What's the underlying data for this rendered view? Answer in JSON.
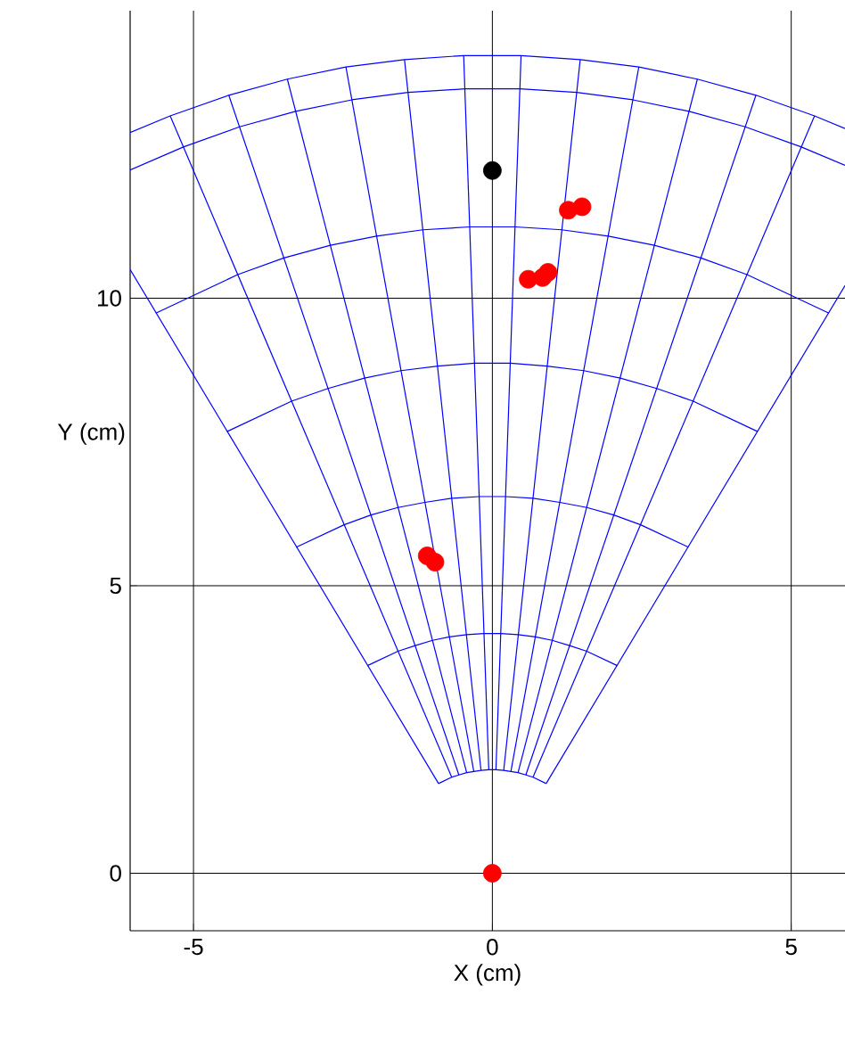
{
  "chart_data": {
    "type": "scatter",
    "xlabel": "X (cm)",
    "ylabel": "Y (cm)",
    "xlim": [
      -6.06,
      5.9
    ],
    "ylim": [
      -1,
      15
    ],
    "xticks": [
      -5,
      0,
      5
    ],
    "yticks": [
      0,
      5,
      10
    ],
    "grid": true,
    "series": [
      {
        "type": "line",
        "color": "#0000ff",
        "x": [
          -0.9,
          -6.06
        ],
        "values": [
          1.56,
          10.5
        ]
      },
      {
        "type": "line",
        "color": "#0000ff",
        "x": [
          -0.68,
          -5.39
        ],
        "values": [
          1.67,
          13.17
        ]
      },
      {
        "type": "line",
        "color": "#0000ff",
        "x": [
          -0.56,
          -4.41
        ],
        "values": [
          1.71,
          13.53
        ]
      },
      {
        "type": "line",
        "color": "#0000ff",
        "x": [
          -0.43,
          -3.43
        ],
        "values": [
          1.75,
          13.81
        ]
      },
      {
        "type": "line",
        "color": "#0000ff",
        "x": [
          -0.31,
          -2.45
        ],
        "values": [
          1.77,
          14.02
        ]
      },
      {
        "type": "line",
        "color": "#0000ff",
        "x": [
          -0.19,
          -1.47
        ],
        "values": [
          1.79,
          14.15
        ]
      },
      {
        "type": "line",
        "color": "#0000ff",
        "x": [
          -0.06,
          -0.48
        ],
        "values": [
          1.8,
          14.22
        ]
      },
      {
        "type": "line",
        "color": "#0000ff",
        "x": [
          0.06,
          0.48
        ],
        "values": [
          1.8,
          14.22
        ]
      },
      {
        "type": "line",
        "color": "#0000ff",
        "x": [
          0.19,
          1.47
        ],
        "values": [
          1.79,
          14.15
        ]
      },
      {
        "type": "line",
        "color": "#0000ff",
        "x": [
          0.31,
          2.45
        ],
        "values": [
          1.77,
          14.02
        ]
      },
      {
        "type": "line",
        "color": "#0000ff",
        "x": [
          0.43,
          3.43
        ],
        "values": [
          1.75,
          13.81
        ]
      },
      {
        "type": "line",
        "color": "#0000ff",
        "x": [
          0.56,
          4.41
        ],
        "values": [
          1.71,
          13.53
        ]
      },
      {
        "type": "line",
        "color": "#0000ff",
        "x": [
          0.68,
          5.39
        ],
        "values": [
          1.67,
          13.17
        ]
      },
      {
        "type": "line",
        "color": "#0000ff",
        "x": [
          0.9,
          5.9
        ],
        "values": [
          1.56,
          10.22
        ]
      },
      {
        "type": "line",
        "color": "#0000ff",
        "x": [
          -0.9,
          -0.68,
          -0.56,
          -0.43,
          -0.31,
          -0.19,
          -0.06,
          0.06,
          0.19,
          0.31,
          0.43,
          0.56,
          0.68,
          0.9
        ],
        "values": [
          1.56,
          1.67,
          1.71,
          1.75,
          1.77,
          1.79,
          1.8,
          1.8,
          1.79,
          1.77,
          1.75,
          1.71,
          1.67,
          1.56
        ]
      },
      {
        "type": "line",
        "color": "#0000ff",
        "x": [
          -2.09,
          -1.58,
          -1.29,
          -1.0,
          -0.72,
          -0.43,
          -0.14,
          0.14,
          0.43,
          0.72,
          1.0,
          1.29,
          1.58,
          2.09
        ],
        "values": [
          3.61,
          3.86,
          3.96,
          4.05,
          4.11,
          4.15,
          4.17,
          4.17,
          4.15,
          4.11,
          4.05,
          3.96,
          3.86,
          3.61
        ]
      },
      {
        "type": "line",
        "color": "#0000ff",
        "x": [
          -3.28,
          -2.48,
          -2.03,
          -1.58,
          -1.13,
          -0.68,
          -0.22,
          0.22,
          0.68,
          1.13,
          1.58,
          2.03,
          2.48,
          3.28
        ],
        "values": [
          5.67,
          6.06,
          6.23,
          6.36,
          6.45,
          6.52,
          6.55,
          6.55,
          6.52,
          6.45,
          6.36,
          6.23,
          6.06,
          5.67
        ]
      },
      {
        "type": "line",
        "color": "#0000ff",
        "x": [
          -4.44,
          -3.36,
          -2.75,
          -2.14,
          -1.53,
          -0.91,
          -0.3,
          0.3,
          0.91,
          1.53,
          2.14,
          2.75,
          3.36,
          4.44
        ],
        "values": [
          7.68,
          8.21,
          8.43,
          8.61,
          8.74,
          8.82,
          8.87,
          8.87,
          8.82,
          8.74,
          8.61,
          8.43,
          8.21,
          7.68
        ]
      },
      {
        "type": "line",
        "color": "#0000ff",
        "x": [
          -5.63,
          -4.26,
          -3.49,
          -2.71,
          -1.94,
          -1.16,
          -0.38,
          0.38,
          1.16,
          1.94,
          2.71,
          3.49,
          4.26,
          5.63
        ],
        "values": [
          9.74,
          10.41,
          10.7,
          10.92,
          11.08,
          11.19,
          11.24,
          11.24,
          11.19,
          11.08,
          10.92,
          10.7,
          10.41,
          9.74
        ]
      },
      {
        "type": "line",
        "color": "#0000ff",
        "x": [
          -6.06,
          -5.17,
          -4.23,
          -3.29,
          -2.35,
          -1.41,
          -0.46,
          0.46,
          1.41,
          2.35,
          3.29,
          4.23,
          5.17,
          5.9
        ],
        "values": [
          12.23,
          12.63,
          12.98,
          13.25,
          13.45,
          13.58,
          13.64,
          13.64,
          13.58,
          13.45,
          13.25,
          12.98,
          12.63,
          12.31
        ]
      },
      {
        "type": "line",
        "color": "#0000ff",
        "x": [
          -6.06,
          -5.39,
          -4.41,
          -3.43,
          -2.45,
          -1.47,
          -0.48,
          0.48,
          1.47,
          2.45,
          3.43,
          4.41,
          5.39,
          5.9
        ],
        "values": [
          12.88,
          13.17,
          13.53,
          13.81,
          14.02,
          14.15,
          14.22,
          14.22,
          14.15,
          14.02,
          13.81,
          13.53,
          13.17,
          12.95
        ]
      },
      {
        "color": "#ff0000",
        "marker": "circle",
        "x": [
          0,
          -1.09,
          -0.96,
          0.6,
          0.84,
          0.93,
          1.27,
          1.5
        ],
        "values": [
          0,
          5.52,
          5.41,
          10.33,
          10.36,
          10.45,
          11.53,
          11.59
        ]
      },
      {
        "color": "#000000",
        "marker": "circle",
        "x": [
          0
        ],
        "values": [
          12.22
        ]
      }
    ]
  }
}
